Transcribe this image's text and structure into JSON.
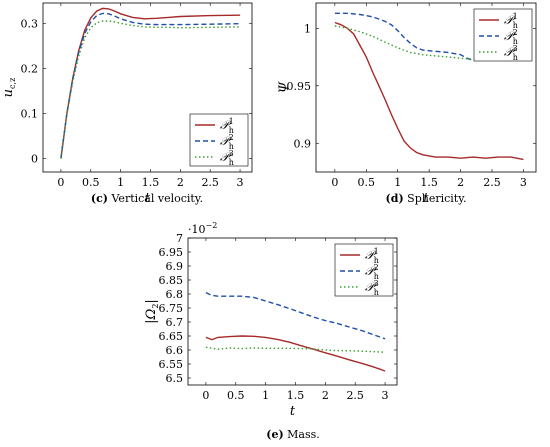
{
  "colors": {
    "P1": "#a52a2a",
    "P2": "#1f4fa8",
    "P3": "#3aa02e"
  },
  "legend_labels": [
    {
      "base": "𝒫",
      "sub": "h",
      "sup": "1"
    },
    {
      "base": "𝒫",
      "sub": "h",
      "sup": "2"
    },
    {
      "base": "𝒫",
      "sub": "h",
      "sup": "3"
    }
  ],
  "chart_data": [
    {
      "type": "line",
      "caption_letter": "(c)",
      "caption_text": "Vertical velocity.",
      "xlabel": "t",
      "ylabel": "u_{c,z}",
      "ylabel_main": "u",
      "ylabel_sub": "c,z",
      "xlim": [
        -0.3,
        3.2
      ],
      "ylim": [
        -0.03,
        0.345
      ],
      "xticks": [
        0,
        0.5,
        1,
        1.5,
        2,
        2.5,
        3
      ],
      "xtick_labels": [
        "0",
        "0.5",
        "1",
        "1.5",
        "2",
        "2.5",
        "3"
      ],
      "yticks": [
        0,
        0.1,
        0.2,
        0.3
      ],
      "ytick_labels": [
        "0",
        "0.1",
        "0.2",
        "0.3"
      ],
      "legend_position": "bottom-right",
      "series": [
        {
          "key": "P1",
          "style": "solid",
          "x": [
            0,
            0.1,
            0.2,
            0.3,
            0.4,
            0.5,
            0.6,
            0.7,
            0.8,
            0.9,
            1.0,
            1.2,
            1.4,
            1.6,
            1.8,
            2.0,
            2.5,
            3.0
          ],
          "y": [
            0,
            0.1,
            0.18,
            0.24,
            0.285,
            0.312,
            0.327,
            0.333,
            0.332,
            0.327,
            0.321,
            0.313,
            0.31,
            0.311,
            0.313,
            0.315,
            0.317,
            0.318
          ]
        },
        {
          "key": "P2",
          "style": "dashed",
          "x": [
            0,
            0.1,
            0.2,
            0.3,
            0.4,
            0.5,
            0.6,
            0.7,
            0.8,
            0.9,
            1.0,
            1.2,
            1.4,
            1.6,
            1.8,
            2.0,
            2.5,
            3.0
          ],
          "y": [
            0,
            0.1,
            0.178,
            0.236,
            0.278,
            0.303,
            0.317,
            0.322,
            0.321,
            0.316,
            0.31,
            0.302,
            0.298,
            0.297,
            0.297,
            0.297,
            0.298,
            0.299
          ]
        },
        {
          "key": "P3",
          "style": "dotted",
          "x": [
            0,
            0.1,
            0.2,
            0.3,
            0.4,
            0.5,
            0.6,
            0.7,
            0.8,
            0.9,
            1.0,
            1.2,
            1.4,
            1.6,
            1.8,
            2.0,
            2.5,
            3.0
          ],
          "y": [
            0,
            0.098,
            0.172,
            0.228,
            0.268,
            0.29,
            0.301,
            0.305,
            0.305,
            0.303,
            0.3,
            0.295,
            0.292,
            0.291,
            0.291,
            0.29,
            0.291,
            0.292
          ]
        }
      ]
    },
    {
      "type": "line",
      "caption_letter": "(d)",
      "caption_text": "Sphericity.",
      "xlabel": "t",
      "ylabel": "Ψ",
      "ylabel_main": "Ψ",
      "ylabel_sub": "",
      "xlim": [
        -0.3,
        3.2
      ],
      "ylim": [
        0.875,
        1.022
      ],
      "xticks": [
        0,
        0.5,
        1,
        1.5,
        2,
        2.5,
        3
      ],
      "xtick_labels": [
        "0",
        "0.5",
        "1",
        "1.5",
        "2",
        "2.5",
        "3"
      ],
      "yticks": [
        0.9,
        0.95,
        1.0
      ],
      "ytick_labels": [
        "0.9",
        "0.95",
        "1"
      ],
      "legend_position": "top-right",
      "series": [
        {
          "key": "P1",
          "style": "solid",
          "x": [
            0,
            0.1,
            0.2,
            0.3,
            0.4,
            0.5,
            0.6,
            0.7,
            0.8,
            0.9,
            1.0,
            1.1,
            1.2,
            1.3,
            1.4,
            1.5,
            1.6,
            1.8,
            2.0,
            2.2,
            2.4,
            2.6,
            2.8,
            3.0
          ],
          "y": [
            1.005,
            1.003,
            1.0,
            0.995,
            0.985,
            0.975,
            0.962,
            0.95,
            0.938,
            0.925,
            0.913,
            0.902,
            0.896,
            0.892,
            0.89,
            0.889,
            0.888,
            0.888,
            0.887,
            0.888,
            0.887,
            0.888,
            0.888,
            0.886
          ]
        },
        {
          "key": "P2",
          "style": "dashed",
          "x": [
            0,
            0.2,
            0.4,
            0.6,
            0.7,
            0.8,
            0.9,
            1.0,
            1.1,
            1.2,
            1.3,
            1.4,
            1.6,
            1.8,
            2.0,
            2.1,
            2.2,
            2.4,
            2.6,
            2.8,
            3.0
          ],
          "y": [
            1.013,
            1.013,
            1.012,
            1.01,
            1.008,
            1.006,
            1.003,
            0.998,
            0.992,
            0.987,
            0.983,
            0.981,
            0.98,
            0.979,
            0.977,
            0.974,
            0.972,
            0.974,
            0.976,
            0.977,
            0.977
          ]
        },
        {
          "key": "P3",
          "style": "dotted",
          "x": [
            0,
            0.2,
            0.4,
            0.6,
            0.8,
            1.0,
            1.2,
            1.4,
            1.6,
            1.8,
            2.0,
            2.2,
            2.4,
            2.6,
            2.8,
            3.0
          ],
          "y": [
            1.002,
            1.0,
            0.997,
            0.993,
            0.988,
            0.983,
            0.979,
            0.977,
            0.976,
            0.975,
            0.974,
            0.973,
            0.973,
            0.974,
            0.974,
            0.974
          ]
        }
      ]
    },
    {
      "type": "line",
      "caption_letter": "(e)",
      "caption_text": "Mass.",
      "xlabel": "t",
      "ylabel": "|Ω2|",
      "ylabel_main": "|Ω",
      "ylabel_sub": "2",
      "ylabel_tail": "|",
      "multiplier": "·10",
      "multiplier_exp": "−2",
      "xlim": [
        -0.3,
        3.2
      ],
      "ylim": [
        6.475,
        7.0
      ],
      "xticks": [
        0,
        0.5,
        1,
        1.5,
        2,
        2.5,
        3
      ],
      "xtick_labels": [
        "0",
        "0.5",
        "1",
        "1.5",
        "2",
        "2.5",
        "3"
      ],
      "yticks": [
        6.5,
        6.55,
        6.6,
        6.65,
        6.7,
        6.75,
        6.8,
        6.85,
        6.9,
        6.95,
        7.0
      ],
      "ytick_labels": [
        "6.5",
        "6.55",
        "6.6",
        "6.65",
        "6.7",
        "6.75",
        "6.8",
        "6.85",
        "6.9",
        "6.95",
        "7"
      ],
      "legend_position": "top-right",
      "series": [
        {
          "key": "P1",
          "style": "solid",
          "x": [
            0,
            0.1,
            0.2,
            0.4,
            0.6,
            0.8,
            1.0,
            1.2,
            1.4,
            1.6,
            1.8,
            2.0,
            2.2,
            2.4,
            2.6,
            2.8,
            3.0
          ],
          "y": [
            6.645,
            6.637,
            6.645,
            6.648,
            6.65,
            6.649,
            6.645,
            6.638,
            6.628,
            6.615,
            6.603,
            6.59,
            6.578,
            6.565,
            6.553,
            6.54,
            6.525
          ]
        },
        {
          "key": "P2",
          "style": "dashed",
          "x": [
            0,
            0.1,
            0.2,
            0.4,
            0.6,
            0.8,
            1.0,
            1.2,
            1.4,
            1.6,
            1.8,
            2.0,
            2.2,
            2.4,
            2.6,
            2.8,
            3.0
          ],
          "y": [
            6.805,
            6.795,
            6.792,
            6.792,
            6.792,
            6.788,
            6.775,
            6.762,
            6.748,
            6.733,
            6.718,
            6.705,
            6.695,
            6.682,
            6.67,
            6.655,
            6.64
          ]
        },
        {
          "key": "P3",
          "style": "dotted",
          "x": [
            0,
            0.2,
            0.4,
            0.6,
            0.8,
            1.0,
            1.2,
            1.4,
            1.6,
            1.8,
            2.0,
            2.2,
            2.4,
            2.6,
            2.8,
            3.0
          ],
          "y": [
            6.61,
            6.603,
            6.607,
            6.605,
            6.607,
            6.606,
            6.606,
            6.606,
            6.605,
            6.604,
            6.6,
            6.598,
            6.597,
            6.596,
            6.594,
            6.592
          ]
        }
      ]
    }
  ]
}
